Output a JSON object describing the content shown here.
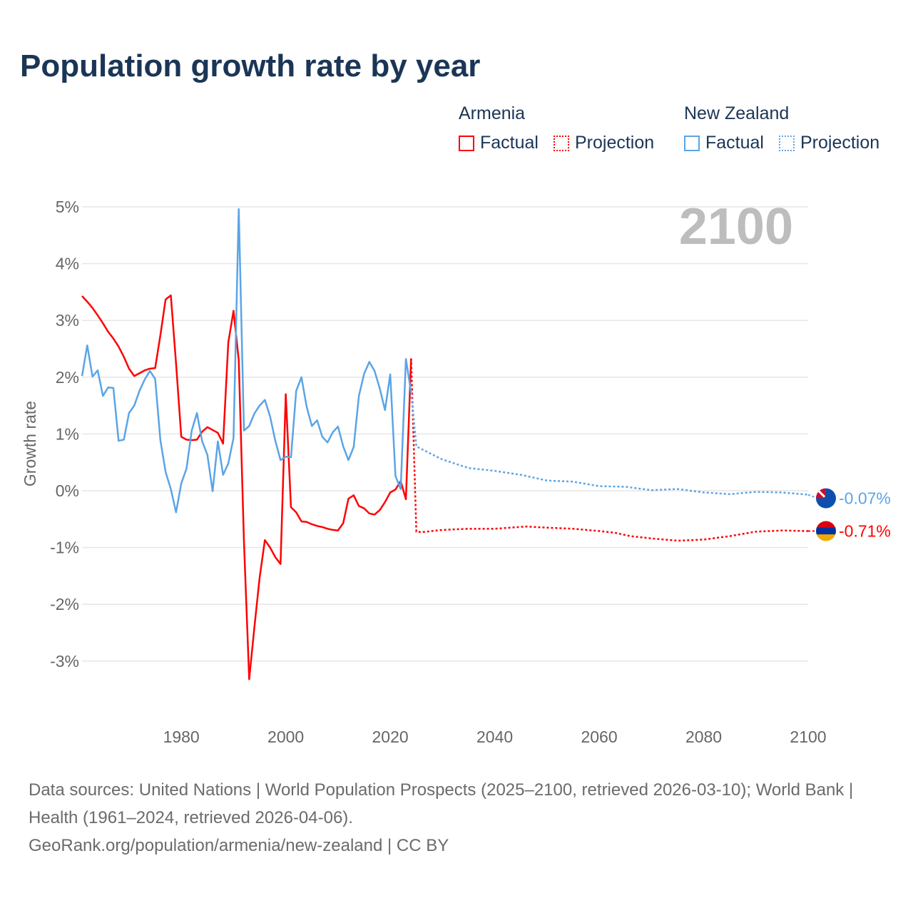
{
  "chart_data": {
    "type": "line",
    "title": "Population growth rate by year",
    "ylabel": "Growth rate",
    "xlabel": "",
    "xlim": [
      1961,
      2100
    ],
    "ylim": [
      -4,
      5
    ],
    "x_ticks": [
      1980,
      2000,
      2020,
      2040,
      2060,
      2080,
      2100
    ],
    "x_tick_labels": [
      "1980",
      "2000",
      "2020",
      "2040",
      "2060",
      "2080",
      "2100"
    ],
    "y_ticks": [
      5,
      4,
      3,
      2,
      1,
      0,
      -1,
      -2,
      -3
    ],
    "y_tick_labels": [
      "5%",
      "4%",
      "3%",
      "2%",
      "1%",
      "0%",
      "-1%",
      "-2%",
      "-3%"
    ],
    "grid": true,
    "year_label": "2100",
    "legend_placement": "top-right",
    "series": [
      {
        "name": "Armenia",
        "color": "#ff0000",
        "end_label": "-0.71%",
        "factual_label": "Factual",
        "projection_label": "Projection",
        "factual": {
          "x_start": 1961,
          "values": [
            3.43,
            3.33,
            3.22,
            3.09,
            2.95,
            2.8,
            2.68,
            2.54,
            2.36,
            2.15,
            2.02,
            2.07,
            2.12,
            2.15,
            2.16,
            2.74,
            3.37,
            3.44,
            2.24,
            0.95,
            0.9,
            0.89,
            0.9,
            1.04,
            1.12,
            1.07,
            1.02,
            0.83,
            2.61,
            3.17,
            2.3,
            -0.9,
            -3.32,
            -2.4,
            -1.53,
            -0.87,
            -1.0,
            -1.17,
            -1.29,
            1.7,
            -0.29,
            -0.38,
            -0.54,
            -0.55,
            -0.59,
            -0.62,
            -0.64,
            -0.67,
            -0.69,
            -0.7,
            -0.57,
            -0.14,
            -0.08,
            -0.27,
            -0.31,
            -0.4,
            -0.42,
            -0.34,
            -0.2,
            -0.03,
            0.02,
            0.17,
            -0.15,
            2.33
          ]
        },
        "projection": {
          "x": [
            2024,
            2025,
            2026,
            2030,
            2035,
            2040,
            2046,
            2050,
            2055,
            2060,
            2063,
            2066,
            2070,
            2075,
            2080,
            2085,
            2090,
            2095,
            2100
          ],
          "values": [
            2.33,
            -0.72,
            -0.73,
            -0.69,
            -0.67,
            -0.67,
            -0.63,
            -0.65,
            -0.67,
            -0.71,
            -0.74,
            -0.8,
            -0.84,
            -0.88,
            -0.86,
            -0.8,
            -0.72,
            -0.7,
            -0.71
          ]
        }
      },
      {
        "name": "New Zealand",
        "color": "#5ba4e6",
        "end_label": "-0.07%",
        "factual_label": "Factual",
        "projection_label": "Projection",
        "factual": {
          "x_start": 1961,
          "values": [
            2.02,
            2.56,
            2.01,
            2.12,
            1.67,
            1.82,
            1.81,
            0.88,
            0.9,
            1.37,
            1.5,
            1.76,
            1.96,
            2.11,
            1.97,
            0.89,
            0.33,
            0.03,
            -0.38,
            0.13,
            0.39,
            1.06,
            1.37,
            0.87,
            0.63,
            -0.01,
            0.87,
            0.28,
            0.48,
            0.93,
            4.96,
            1.06,
            1.14,
            1.36,
            1.5,
            1.6,
            1.31,
            0.88,
            0.54,
            0.6,
            0.59,
            1.76,
            2.0,
            1.48,
            1.14,
            1.24,
            0.95,
            0.85,
            1.03,
            1.13,
            0.78,
            0.54,
            0.77,
            1.67,
            2.06,
            2.27,
            2.11,
            1.8,
            1.42,
            2.05,
            0.26,
            0.03,
            2.32,
            1.73
          ]
        },
        "projection": {
          "x": [
            2024,
            2025,
            2030,
            2035,
            2040,
            2045,
            2050,
            2055,
            2060,
            2065,
            2070,
            2075,
            2080,
            2085,
            2090,
            2095,
            2100
          ],
          "values": [
            1.73,
            0.78,
            0.55,
            0.4,
            0.35,
            0.28,
            0.18,
            0.16,
            0.08,
            0.07,
            0.01,
            0.03,
            -0.03,
            -0.06,
            -0.02,
            -0.03,
            -0.07
          ]
        }
      }
    ]
  },
  "footer": {
    "sources": "Data sources: United Nations | World Population Prospects (2025–2100, retrieved 2026-03-10); World Bank | Health (1961–2024, retrieved 2026-04-06).",
    "credit": "GeoRank.org/population/armenia/new-zealand | CC BY"
  }
}
